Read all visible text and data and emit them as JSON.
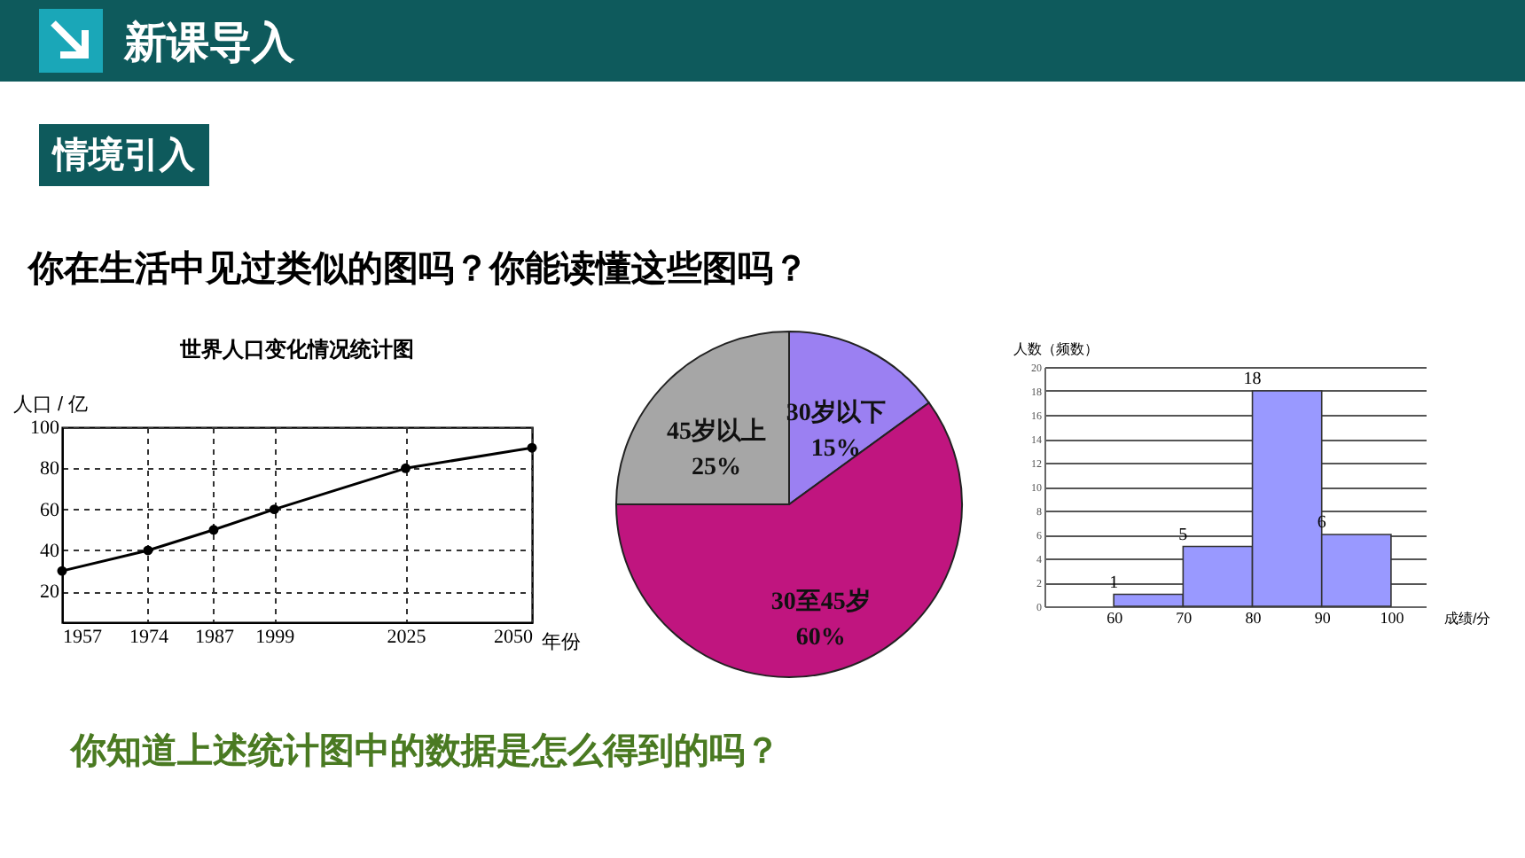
{
  "chart_data": [
    {
      "type": "other",
      "annotations": [
        "新课导入",
        "情境引入",
        "你在生活中见过类似的图吗？你能读懂这些图吗？"
      ]
    },
    {
      "type": "line",
      "title": "世界人口变化情况统计图",
      "xlabel": "年份",
      "ylabel": "人口 / 亿",
      "x": [
        1957,
        1974,
        1987,
        1999,
        2025,
        2050
      ],
      "values": [
        30,
        40,
        50,
        60,
        80,
        90
      ],
      "color": "#000000",
      "xlim": [
        1957,
        2050
      ],
      "xticks": [
        1957,
        1974,
        1987,
        1999,
        2025,
        2050
      ],
      "ylim": [
        5,
        100
      ],
      "yticks": [
        20,
        40,
        60,
        80,
        100
      ],
      "grid": true,
      "marker": "circle",
      "line_style": "solid"
    },
    {
      "type": "pie",
      "categories": [
        "30岁以下",
        "30至45岁",
        "45岁以上"
      ],
      "values": [
        15,
        60,
        25
      ],
      "colors": [
        "#9b80f2",
        "#c0157f",
        "#a6a6a6"
      ],
      "value_labels": [
        "15%",
        "60%",
        "25%"
      ]
    },
    {
      "type": "histogram",
      "xlabel": "成绩/分",
      "ylabel": "人数（频数）",
      "bins": [
        60,
        70,
        80,
        90,
        100
      ],
      "values": [
        1,
        5,
        18,
        6
      ],
      "color": "#9999ff",
      "xlim": [
        50,
        105
      ],
      "xticks": [
        60,
        70,
        80,
        90,
        100
      ],
      "ylim": [
        0,
        20
      ],
      "yticks": [
        0,
        2,
        4,
        6,
        8,
        10,
        12,
        14,
        16,
        18,
        20
      ],
      "grid": "y",
      "data_labels": true
    },
    {
      "type": "other",
      "annotations": [
        "你知道上述统计图中的数据是怎么得到的吗？"
      ]
    }
  ]
}
